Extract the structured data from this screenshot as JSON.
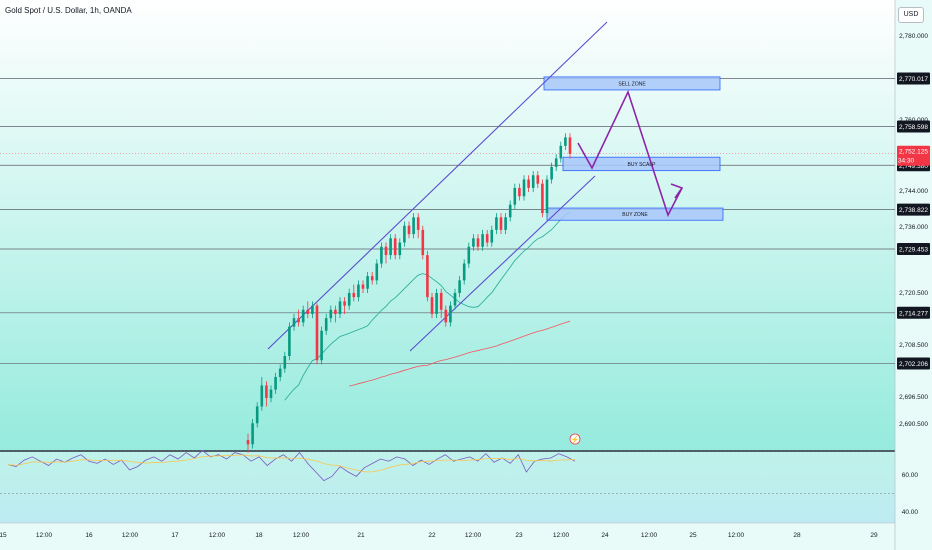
{
  "header": {
    "title": "Gold Spot / U.S. Dollar, 1h, OANDA",
    "currency_button": "USD"
  },
  "chart_data": {
    "type": "line",
    "title": "Gold Spot / U.S. Dollar, 1h, OANDA",
    "price_axis": {
      "range": [
        2681.4,
        2788.7
      ],
      "ticks": [
        "2,780.000",
        "2,760.000",
        "2,744.000",
        "2,736.000",
        "2,720.500",
        "2,708.500",
        "2,696.500",
        "2,690.500"
      ]
    },
    "time_axis": {
      "ticks": [
        "15",
        "12:00",
        "16",
        "12:00",
        "17",
        "12:00",
        "18",
        "12:00",
        "21",
        "22",
        "12:00",
        "23",
        "12:00",
        "24",
        "12:00",
        "25",
        "12:00",
        "28",
        "29"
      ]
    },
    "horizontal_levels": [
      {
        "label": "2,770.017",
        "value": 2770.017
      },
      {
        "label": "2,758.598",
        "value": 2758.598
      },
      {
        "label": "2,749.380",
        "value": 2749.38
      },
      {
        "label": "2,738.822",
        "value": 2738.822
      },
      {
        "label": "2,729.453",
        "value": 2729.453
      },
      {
        "label": "2,714.277",
        "value": 2714.277
      },
      {
        "label": "2,702.206",
        "value": 2702.206
      }
    ],
    "current_price": {
      "label": "2,752.125",
      "countdown": "34:30",
      "value": 2752.125
    },
    "zones": [
      {
        "label": "SELL ZONE",
        "top": 2770.4,
        "bottom": 2767.3
      },
      {
        "label": "BUY SCALP",
        "top": 2751.3,
        "bottom": 2748.1
      },
      {
        "label": "BUY ZONE",
        "top": 2739.2,
        "bottom": 2736.3
      }
    ],
    "candles": [
      [
        2684.0,
        2683.0,
        2685.5,
        2681.0
      ],
      [
        2683.0,
        2688.0,
        2689.0,
        2682.0
      ],
      [
        2688.0,
        2692.0,
        2693.0,
        2687.0
      ],
      [
        2692.0,
        2697.0,
        2699.0,
        2691.0
      ],
      [
        2697.0,
        2694.0,
        2698.0,
        2692.0
      ],
      [
        2694.0,
        2696.0,
        2697.0,
        2693.0
      ],
      [
        2696.0,
        2699.0,
        2700.0,
        2695.0
      ],
      [
        2699.0,
        2701.0,
        2702.0,
        2698.0
      ],
      [
        2701.0,
        2704.0,
        2705.0,
        2700.0
      ],
      [
        2704.0,
        2711.0,
        2712.0,
        2703.0
      ],
      [
        2711.0,
        2713.0,
        2714.0,
        2710.0
      ],
      [
        2713.0,
        2712.0,
        2715.0,
        2711.0
      ],
      [
        2712.0,
        2715.0,
        2716.0,
        2711.0
      ],
      [
        2715.0,
        2714.0,
        2717.0,
        2713.0
      ],
      [
        2714.0,
        2716.0,
        2717.0,
        2713.0
      ],
      [
        2716.0,
        2703.0,
        2716.5,
        2702.0
      ],
      [
        2703.0,
        2710.0,
        2711.0,
        2702.0
      ],
      [
        2710.0,
        2713.0,
        2714.0,
        2709.0
      ],
      [
        2713.0,
        2715.0,
        2716.0,
        2712.0
      ],
      [
        2715.0,
        2714.0,
        2716.0,
        2712.0
      ],
      [
        2714.0,
        2717.0,
        2718.0,
        2713.0
      ],
      [
        2717.0,
        2716.0,
        2718.0,
        2714.0
      ],
      [
        2716.0,
        2719.0,
        2720.0,
        2715.0
      ],
      [
        2719.0,
        2718.0,
        2721.0,
        2717.0
      ],
      [
        2718.0,
        2721.0,
        2722.0,
        2717.0
      ],
      [
        2721.0,
        2720.0,
        2722.0,
        2719.0
      ],
      [
        2720.0,
        2723.0,
        2724.0,
        2719.0
      ],
      [
        2723.0,
        2722.0,
        2724.0,
        2721.0
      ],
      [
        2722.0,
        2726.0,
        2727.0,
        2721.0
      ],
      [
        2726.0,
        2730.0,
        2731.0,
        2725.0
      ],
      [
        2730.0,
        2728.0,
        2731.0,
        2726.0
      ],
      [
        2728.0,
        2732.0,
        2733.0,
        2727.0
      ],
      [
        2732.0,
        2728.0,
        2733.0,
        2727.0
      ],
      [
        2728.0,
        2731.0,
        2732.0,
        2727.0
      ],
      [
        2731.0,
        2735.0,
        2736.0,
        2730.0
      ],
      [
        2735.0,
        2733.0,
        2736.0,
        2732.0
      ],
      [
        2733.0,
        2737.0,
        2738.0,
        2732.0
      ],
      [
        2737.0,
        2734.0,
        2738.0,
        2732.0
      ],
      [
        2734.0,
        2728.0,
        2735.0,
        2727.0
      ],
      [
        2728.0,
        2718.0,
        2729.0,
        2717.0
      ],
      [
        2718.0,
        2714.0,
        2719.0,
        2713.0
      ],
      [
        2714.0,
        2719.0,
        2720.0,
        2713.0
      ],
      [
        2719.0,
        2715.0,
        2720.0,
        2713.0
      ],
      [
        2715.0,
        2712.0,
        2716.0,
        2711.0
      ],
      [
        2712.0,
        2716.0,
        2717.0,
        2711.0
      ],
      [
        2716.0,
        2719.0,
        2720.0,
        2715.0
      ],
      [
        2719.0,
        2722.0,
        2723.0,
        2718.0
      ],
      [
        2722.0,
        2726.0,
        2727.0,
        2721.0
      ],
      [
        2726.0,
        2730.0,
        2731.0,
        2725.0
      ],
      [
        2730.0,
        2732.0,
        2733.0,
        2729.0
      ],
      [
        2732.0,
        2730.0,
        2733.0,
        2729.0
      ],
      [
        2730.0,
        2733.0,
        2734.0,
        2729.0
      ],
      [
        2733.0,
        2731.0,
        2734.0,
        2730.0
      ],
      [
        2731.0,
        2734.0,
        2735.0,
        2730.0
      ],
      [
        2734.0,
        2737.0,
        2738.0,
        2733.0
      ],
      [
        2737.0,
        2734.0,
        2738.0,
        2733.0
      ],
      [
        2734.0,
        2737.0,
        2738.0,
        2733.0
      ],
      [
        2737.0,
        2740.0,
        2741.0,
        2736.0
      ],
      [
        2740.0,
        2744.0,
        2745.0,
        2739.0
      ],
      [
        2744.0,
        2742.0,
        2745.0,
        2741.0
      ],
      [
        2742.0,
        2746.0,
        2747.0,
        2741.0
      ],
      [
        2746.0,
        2744.0,
        2747.0,
        2743.0
      ],
      [
        2744.0,
        2747.0,
        2748.0,
        2743.0
      ],
      [
        2747.0,
        2745.0,
        2748.0,
        2744.0
      ],
      [
        2745.0,
        2738.0,
        2746.0,
        2737.0
      ],
      [
        2738.0,
        2746.0,
        2747.0,
        2737.0
      ],
      [
        2746.0,
        2749.0,
        2750.0,
        2745.0
      ],
      [
        2749.0,
        2751.0,
        2752.0,
        2748.0
      ],
      [
        2751.0,
        2754.0,
        2755.0,
        2750.0
      ],
      [
        2754.0,
        2756.0,
        2757.0,
        2753.0
      ],
      [
        2756.0,
        2752.1,
        2757.0,
        2751.0
      ]
    ],
    "rsi": {
      "ticks": [
        "60.00",
        "40.00"
      ],
      "values": [
        57,
        55,
        61,
        64,
        60,
        56,
        62,
        59,
        63,
        66,
        60,
        58,
        62,
        57,
        61,
        52,
        55,
        61,
        64,
        60,
        66,
        62,
        68,
        63,
        70,
        64,
        66,
        62,
        68,
        66,
        60,
        64,
        56,
        62,
        66,
        60,
        68,
        58,
        50,
        42,
        46,
        55,
        50,
        46,
        54,
        58,
        62,
        60,
        64,
        62,
        56,
        61,
        57,
        62,
        66,
        60,
        62,
        64,
        60,
        67,
        59,
        63,
        58,
        66,
        50,
        60,
        62,
        63,
        67,
        64,
        60
      ]
    }
  }
}
